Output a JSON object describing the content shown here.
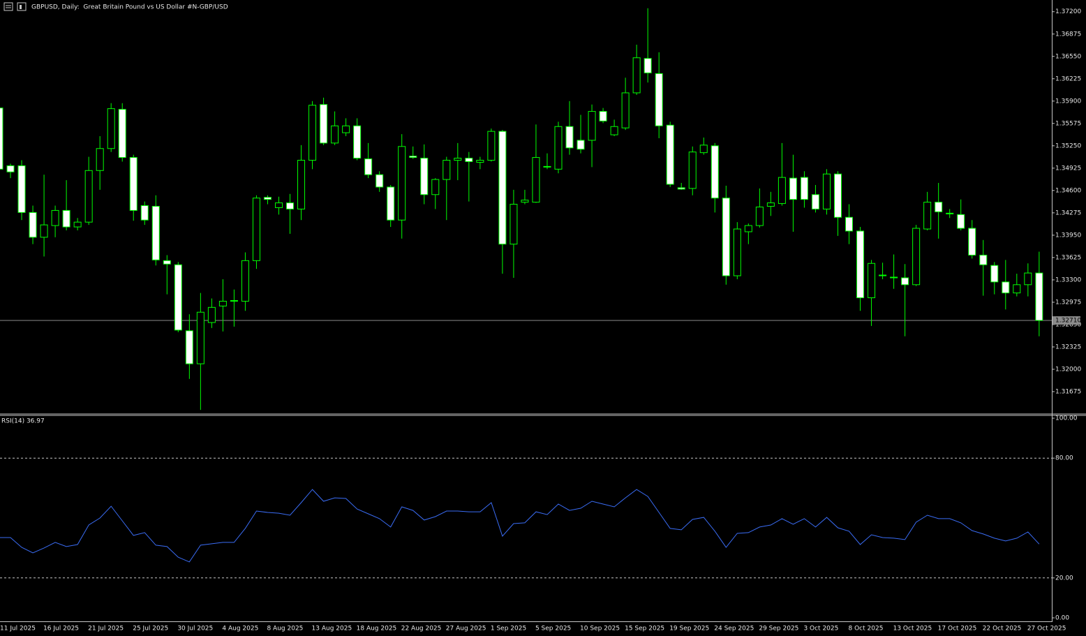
{
  "chart_data": [
    {
      "type": "candlestick",
      "title": "GBPUSD, Daily:  Great Britain Pound vs US Dollar #N-GBP/USD",
      "categories": [
        "11 Jul 2025",
        null,
        null,
        null,
        "16 Jul 2025",
        null,
        null,
        null,
        "21 Jul 2025",
        null,
        null,
        null,
        "25 Jul 2025",
        null,
        null,
        null,
        "30 Jul 2025",
        null,
        null,
        null,
        "4 Aug 2025",
        null,
        null,
        null,
        "8 Aug 2025",
        null,
        null,
        null,
        "13 Aug 2025",
        null,
        null,
        null,
        "18 Aug 2025",
        null,
        null,
        null,
        "22 Aug 2025",
        null,
        null,
        null,
        "27 Aug 2025",
        null,
        null,
        null,
        "1 Sep 2025",
        null,
        null,
        null,
        "5 Sep 2025",
        null,
        null,
        null,
        "10 Sep 2025",
        null,
        null,
        null,
        "15 Sep 2025",
        null,
        null,
        null,
        "19 Sep 2025",
        null,
        null,
        null,
        "24 Sep 2025",
        null,
        null,
        null,
        "29 Sep 2025",
        null,
        null,
        null,
        "3 Oct 2025",
        null,
        null,
        null,
        "8 Oct 2025",
        null,
        null,
        null,
        "13 Oct 2025",
        null,
        null,
        null,
        "17 Oct 2025",
        null,
        null,
        null,
        "22 Oct 2025",
        null,
        null,
        null,
        "27 Oct 2025",
        null
      ],
      "open": [
        1.358,
        1.3496,
        1.3496,
        1.3428,
        1.3392,
        1.3409,
        1.3431,
        1.3407,
        1.3414,
        1.3489,
        1.3521,
        1.3578,
        1.3508,
        1.3438,
        1.3437,
        1.3358,
        1.3352,
        1.3256,
        1.3208,
        1.3268,
        1.3292,
        1.3299,
        1.3299,
        1.3358,
        1.345,
        1.3435,
        1.3442,
        1.3433,
        1.3504,
        1.3585,
        1.3529,
        1.3544,
        1.3554,
        1.3506,
        1.3483,
        1.3465,
        1.3417,
        1.351,
        1.3507,
        1.3454,
        1.3476,
        1.3504,
        1.3507,
        1.3501,
        1.3504,
        1.3546,
        1.3382,
        1.3443,
        1.3443,
        1.3494,
        1.3491,
        1.3553,
        1.3533,
        1.3533,
        1.3575,
        1.3541,
        1.3551,
        1.3602,
        1.3652,
        1.363,
        1.3555,
        1.3464,
        1.3463,
        1.3515,
        1.3525,
        1.3449,
        1.3336,
        1.34,
        1.3409,
        1.3437,
        1.3441,
        1.3478,
        1.3479,
        1.3454,
        1.3433,
        1.3484,
        1.3421,
        1.3401,
        1.3304,
        1.3337,
        1.3334,
        1.3333,
        1.3323,
        1.3404,
        1.3443,
        1.3427,
        1.3425,
        1.3405,
        1.3366,
        1.3351,
        1.3327,
        1.3311,
        1.3323,
        1.334
      ],
      "high": [
        1.3585,
        1.3499,
        1.3504,
        1.3438,
        1.3483,
        1.3438,
        1.3475,
        1.342,
        1.3509,
        1.3539,
        1.3587,
        1.3587,
        1.3512,
        1.3444,
        1.3453,
        1.3366,
        1.3356,
        1.328,
        1.3311,
        1.3303,
        1.3331,
        1.3316,
        1.337,
        1.3453,
        1.3453,
        1.3451,
        1.3455,
        1.3526,
        1.359,
        1.3595,
        1.3575,
        1.3565,
        1.3565,
        1.3529,
        1.3488,
        1.3468,
        1.3542,
        1.3524,
        1.3527,
        1.3478,
        1.3509,
        1.3529,
        1.3516,
        1.3509,
        1.355,
        1.3548,
        1.3461,
        1.3461,
        1.3556,
        1.3514,
        1.356,
        1.359,
        1.357,
        1.3585,
        1.358,
        1.3563,
        1.3624,
        1.3672,
        1.3725,
        1.3661,
        1.356,
        1.3471,
        1.3524,
        1.3537,
        1.3529,
        1.3467,
        1.3414,
        1.3412,
        1.3463,
        1.3458,
        1.3529,
        1.3512,
        1.3488,
        1.3468,
        1.3491,
        1.3488,
        1.344,
        1.3407,
        1.3359,
        1.3355,
        1.3367,
        1.3353,
        1.341,
        1.3458,
        1.3471,
        1.3433,
        1.3447,
        1.3417,
        1.3388,
        1.3356,
        1.3359,
        1.3339,
        1.3354,
        1.3371
      ],
      "low": [
        1.3488,
        1.3478,
        1.3417,
        1.3382,
        1.3364,
        1.3392,
        1.3402,
        1.3402,
        1.341,
        1.3461,
        1.3516,
        1.3502,
        1.3416,
        1.341,
        1.3351,
        1.3309,
        1.3254,
        1.3186,
        1.3141,
        1.326,
        1.3255,
        1.3262,
        1.3285,
        1.3346,
        1.344,
        1.3425,
        1.3397,
        1.3417,
        1.3491,
        1.3526,
        1.3526,
        1.3539,
        1.3504,
        1.3478,
        1.3458,
        1.3407,
        1.339,
        1.3506,
        1.344,
        1.3433,
        1.3417,
        1.3475,
        1.3444,
        1.3491,
        1.3502,
        1.3339,
        1.3333,
        1.344,
        1.3442,
        1.3491,
        1.3485,
        1.3512,
        1.3514,
        1.3494,
        1.3558,
        1.3539,
        1.3548,
        1.3599,
        1.3617,
        1.3536,
        1.3465,
        1.3461,
        1.3453,
        1.3512,
        1.3428,
        1.3323,
        1.3331,
        1.3382,
        1.3406,
        1.3423,
        1.3438,
        1.34,
        1.3435,
        1.3428,
        1.3425,
        1.3394,
        1.3382,
        1.3285,
        1.3263,
        1.3331,
        1.3317,
        1.3248,
        1.3321,
        1.3402,
        1.339,
        1.342,
        1.3402,
        1.3361,
        1.3307,
        1.3309,
        1.3287,
        1.3306,
        1.3306,
        1.3248
      ],
      "close": [
        1.3491,
        1.3487,
        1.3428,
        1.3392,
        1.341,
        1.3431,
        1.3407,
        1.3414,
        1.3489,
        1.3521,
        1.3579,
        1.3508,
        1.3431,
        1.3417,
        1.3359,
        1.3353,
        1.3257,
        1.3208,
        1.3283,
        1.329,
        1.3299,
        1.33,
        1.3358,
        1.3449,
        1.3447,
        1.3442,
        1.3433,
        1.3504,
        1.3584,
        1.3529,
        1.3554,
        1.3554,
        1.3507,
        1.3483,
        1.3465,
        1.3417,
        1.3524,
        1.3508,
        1.3454,
        1.3476,
        1.3504,
        1.3507,
        1.3502,
        1.3504,
        1.3546,
        1.3382,
        1.344,
        1.3446,
        1.3508,
        1.3495,
        1.3553,
        1.3522,
        1.352,
        1.3575,
        1.3561,
        1.3553,
        1.3602,
        1.3653,
        1.3631,
        1.3554,
        1.3469,
        1.3462,
        1.3516,
        1.3526,
        1.3449,
        1.3336,
        1.3404,
        1.3409,
        1.3436,
        1.3442,
        1.3479,
        1.3447,
        1.3447,
        1.3433,
        1.3484,
        1.3421,
        1.3401,
        1.3304,
        1.3354,
        1.3337,
        1.3333,
        1.3323,
        1.3405,
        1.3443,
        1.3429,
        1.3426,
        1.3405,
        1.3366,
        1.3352,
        1.3327,
        1.3311,
        1.3323,
        1.334,
        1.3271
      ],
      "up_color": "#000000",
      "down_color": "#ffffff",
      "wick_color": "#00ff00",
      "ylim": [
        1.3136,
        1.3737
      ],
      "yticks": [
        {
          "value": 1.372,
          "label": "1.37200"
        },
        {
          "value": 1.36875,
          "label": "1.36875"
        },
        {
          "value": 1.3655,
          "label": "1.36550"
        },
        {
          "value": 1.36225,
          "label": "1.36225"
        },
        {
          "value": 1.359,
          "label": "1.35900"
        },
        {
          "value": 1.35575,
          "label": "1.35575"
        },
        {
          "value": 1.3525,
          "label": "1.35250"
        },
        {
          "value": 1.34925,
          "label": "1.34925"
        },
        {
          "value": 1.346,
          "label": "1.34600"
        },
        {
          "value": 1.34275,
          "label": "1.34275"
        },
        {
          "value": 1.3395,
          "label": "1.33950"
        },
        {
          "value": 1.33625,
          "label": "1.33625"
        },
        {
          "value": 1.333,
          "label": "1.33300"
        },
        {
          "value": 1.32975,
          "label": "1.32975"
        },
        {
          "value": 1.3265,
          "label": "1.32650"
        },
        {
          "value": 1.32325,
          "label": "1.32325"
        },
        {
          "value": 1.32,
          "label": "1.32000"
        },
        {
          "value": 1.31675,
          "label": "1.31675"
        }
      ],
      "current_price": {
        "value": 1.3271,
        "label": "1.32710"
      }
    },
    {
      "type": "line",
      "title": "RSI(14) 36.97",
      "color": "#3a6cf4",
      "values": [
        40.2,
        40.2,
        35.3,
        32.5,
        35.0,
        37.8,
        35.7,
        36.7,
        46.5,
        50.0,
        55.9,
        48.6,
        41.3,
        42.7,
        36.4,
        35.7,
        30.4,
        28.0,
        36.4,
        37.1,
        37.8,
        37.8,
        44.8,
        53.5,
        52.8,
        52.4,
        51.4,
        57.7,
        64.3,
        58.4,
        60.1,
        59.8,
        54.5,
        52.1,
        49.7,
        45.5,
        55.6,
        53.8,
        49.0,
        50.7,
        53.5,
        53.5,
        53.1,
        53.1,
        57.7,
        40.9,
        47.2,
        47.6,
        53.1,
        51.7,
        57.0,
        53.8,
        54.9,
        58.4,
        57.0,
        55.6,
        60.1,
        64.3,
        60.8,
        52.8,
        44.8,
        44.1,
        49.3,
        50.3,
        43.4,
        35.3,
        42.3,
        42.7,
        45.5,
        46.5,
        49.7,
        46.9,
        49.7,
        45.5,
        50.3,
        45.1,
        43.4,
        36.7,
        41.6,
        40.2,
        39.9,
        39.2,
        47.9,
        51.4,
        49.7,
        49.7,
        47.6,
        43.7,
        42.0,
        39.9,
        38.5,
        39.9,
        43.0,
        36.97
      ],
      "ylim": [
        0,
        100
      ],
      "yticks": [
        {
          "value": 100,
          "label": "100.00"
        },
        {
          "value": 80,
          "label": "80.00"
        },
        {
          "value": 20,
          "label": "20.00"
        },
        {
          "value": 0,
          "label": "0.00"
        }
      ],
      "levels": [
        80,
        20
      ]
    }
  ]
}
